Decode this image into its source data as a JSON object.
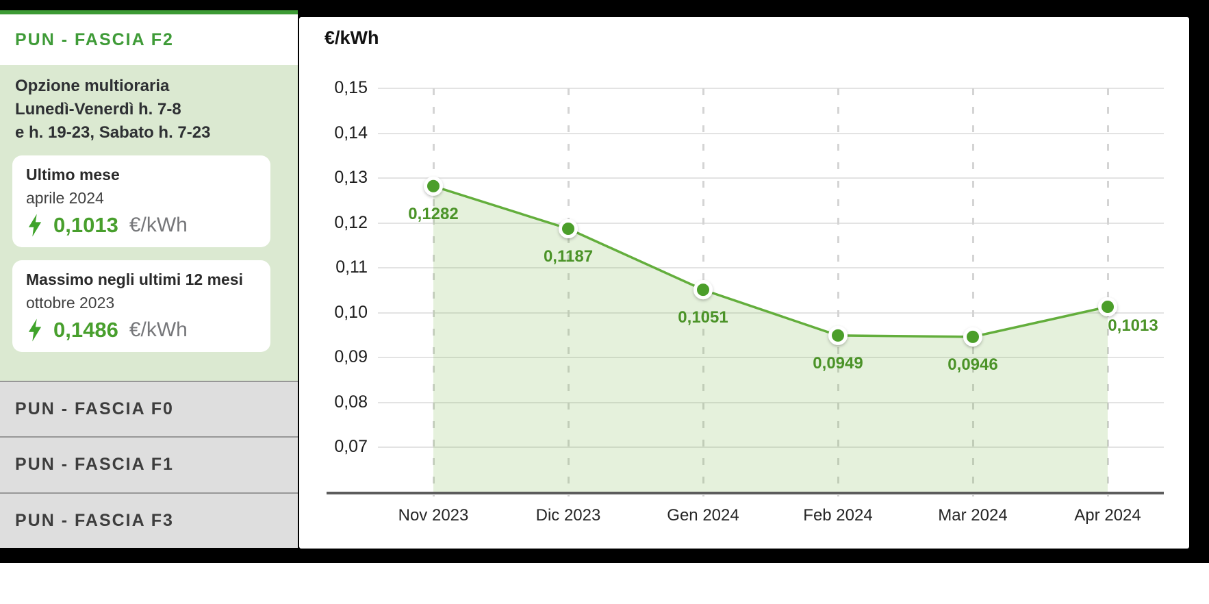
{
  "sidebar": {
    "active_tab": {
      "label": "PUN - FASCIA F2"
    },
    "panel": {
      "heading_lines": [
        "Opzione multioraria",
        "Lunedì-Venerdì h. 7-8",
        "e h. 19-23, Sabato h. 7-23"
      ],
      "cards": [
        {
          "title": "Ultimo mese",
          "period": "aprile 2024",
          "value": "0,1013",
          "unit": "€/kWh"
        },
        {
          "title": "Massimo negli ultimi 12 mesi",
          "period": "ottobre 2023",
          "value": "0,1486",
          "unit": "€/kWh"
        }
      ]
    },
    "tabs": [
      {
        "label": "PUN - FASCIA F0"
      },
      {
        "label": "PUN - FASCIA F1"
      },
      {
        "label": "PUN - FASCIA F3"
      }
    ]
  },
  "chart": {
    "title": "€/kWh"
  },
  "chart_data": {
    "type": "area",
    "title": "€/kWh",
    "categories": [
      "Nov 2023",
      "Dic 2023",
      "Gen 2024",
      "Feb 2024",
      "Mar 2024",
      "Apr 2024"
    ],
    "values": [
      0.1282,
      0.1187,
      0.1051,
      0.0949,
      0.0946,
      0.1013
    ],
    "value_labels": [
      "0,1282",
      "0,1187",
      "0,1051",
      "0,0949",
      "0,0946",
      "0,1013"
    ],
    "ylabel": "€/kWh",
    "xlabel": "",
    "ylim": [
      0.06,
      0.155
    ],
    "yticks": [
      0.15,
      0.14,
      0.13,
      0.12,
      0.11,
      0.1,
      0.09,
      0.08,
      0.07
    ],
    "ytick_labels": [
      "0,15",
      "0,14",
      "0,13",
      "0,12",
      "0,11",
      "0,10",
      "0,09",
      "0,08",
      "0,07"
    ],
    "grid": {
      "horizontal": "solid",
      "vertical": "dashed"
    },
    "legend": "none",
    "colors": {
      "line": "#63ae3c",
      "marker": "#4b9e2b",
      "marker_ring": "#ffffff",
      "area_fill": "rgba(109,179,63,0.18)",
      "point_label": "#4b9328",
      "accent_green": "#3f9b38",
      "panel_bg": "#dbe9d1",
      "inactive_tab_bg": "#dedede",
      "axis": "#5c5c5c"
    }
  }
}
